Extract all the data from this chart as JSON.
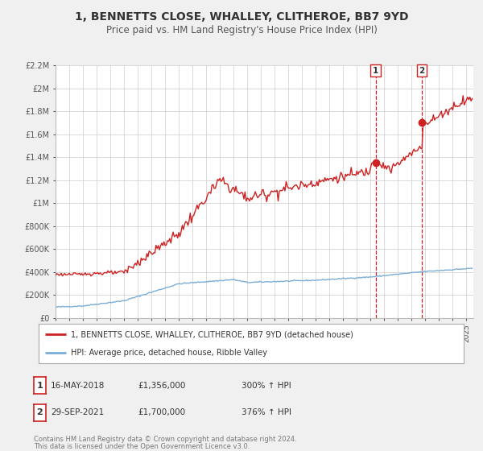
{
  "title": "1, BENNETTS CLOSE, WHALLEY, CLITHEROE, BB7 9YD",
  "subtitle": "Price paid vs. HM Land Registry's House Price Index (HPI)",
  "title_fontsize": 10,
  "subtitle_fontsize": 8.5,
  "hpi_color": "#7aaed6",
  "price_color": "#cc2222",
  "ylim": [
    0,
    2200000
  ],
  "yticks": [
    0,
    200000,
    400000,
    600000,
    800000,
    1000000,
    1200000,
    1400000,
    1600000,
    1800000,
    2000000,
    2200000
  ],
  "ytick_labels": [
    "£0",
    "£200K",
    "£400K",
    "£600K",
    "£800K",
    "£1M",
    "£1.2M",
    "£1.4M",
    "£1.6M",
    "£1.8M",
    "£2M",
    "£2.2M"
  ],
  "xmin": 1995.0,
  "xmax": 2025.5,
  "marker1_x": 2018.37,
  "marker1_y": 1356000,
  "marker1_label": "1",
  "marker1_date": "16-MAY-2018",
  "marker1_price": "£1,356,000",
  "marker1_hpi": "300% ↑ HPI",
  "marker2_x": 2021.75,
  "marker2_y": 1700000,
  "marker2_label": "2",
  "marker2_date": "29-SEP-2021",
  "marker2_price": "£1,700,000",
  "marker2_hpi": "376% ↑ HPI",
  "legend_line1": "1, BENNETTS CLOSE, WHALLEY, CLITHEROE, BB7 9YD (detached house)",
  "legend_line2": "HPI: Average price, detached house, Ribble Valley",
  "footer1": "Contains HM Land Registry data © Crown copyright and database right 2024.",
  "footer2": "This data is licensed under the Open Government Licence v3.0.",
  "bg_color": "#f0f0f0",
  "plot_bg_color": "#ffffff"
}
